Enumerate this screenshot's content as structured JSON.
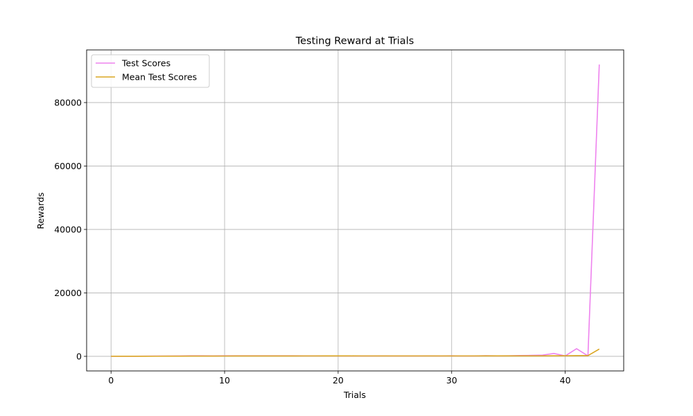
{
  "chart_data": {
    "type": "line",
    "title": "Testing Reward at Trials",
    "xlabel": "Trials",
    "ylabel": "Rewards",
    "xlim": [
      -2.15,
      45.15
    ],
    "ylim": [
      -4600,
      96600
    ],
    "xticks": [
      0,
      10,
      20,
      30,
      40
    ],
    "yticks": [
      0,
      20000,
      40000,
      60000,
      80000
    ],
    "grid": true,
    "legend_position": "top-left",
    "x": [
      0,
      1,
      2,
      3,
      4,
      5,
      6,
      7,
      8,
      9,
      10,
      11,
      12,
      13,
      14,
      15,
      16,
      17,
      18,
      19,
      20,
      21,
      22,
      23,
      24,
      25,
      26,
      27,
      28,
      29,
      30,
      31,
      32,
      33,
      34,
      35,
      36,
      37,
      38,
      39,
      40,
      41,
      42,
      43
    ],
    "series": [
      {
        "name": "Test Scores",
        "color": "#ee82ee",
        "values": [
          20,
          30,
          40,
          60,
          80,
          100,
          120,
          180,
          160,
          150,
          160,
          170,
          160,
          180,
          170,
          180,
          160,
          150,
          140,
          150,
          140,
          120,
          110,
          120,
          130,
          120,
          110,
          120,
          130,
          110,
          170,
          100,
          120,
          200,
          150,
          170,
          240,
          300,
          380,
          900,
          150,
          2400,
          150,
          92000
        ]
      },
      {
        "name": "Mean Test Scores",
        "color": "#daa520",
        "values": [
          20,
          25,
          30,
          38,
          46,
          55,
          64,
          78,
          87,
          93,
          99,
          104,
          108,
          113,
          117,
          121,
          124,
          126,
          127,
          129,
          129,
          129,
          128,
          128,
          128,
          128,
          128,
          128,
          128,
          127,
          128,
          127,
          127,
          129,
          130,
          131,
          134,
          139,
          145,
          163,
          162,
          220,
          218,
          2300
        ]
      }
    ]
  }
}
